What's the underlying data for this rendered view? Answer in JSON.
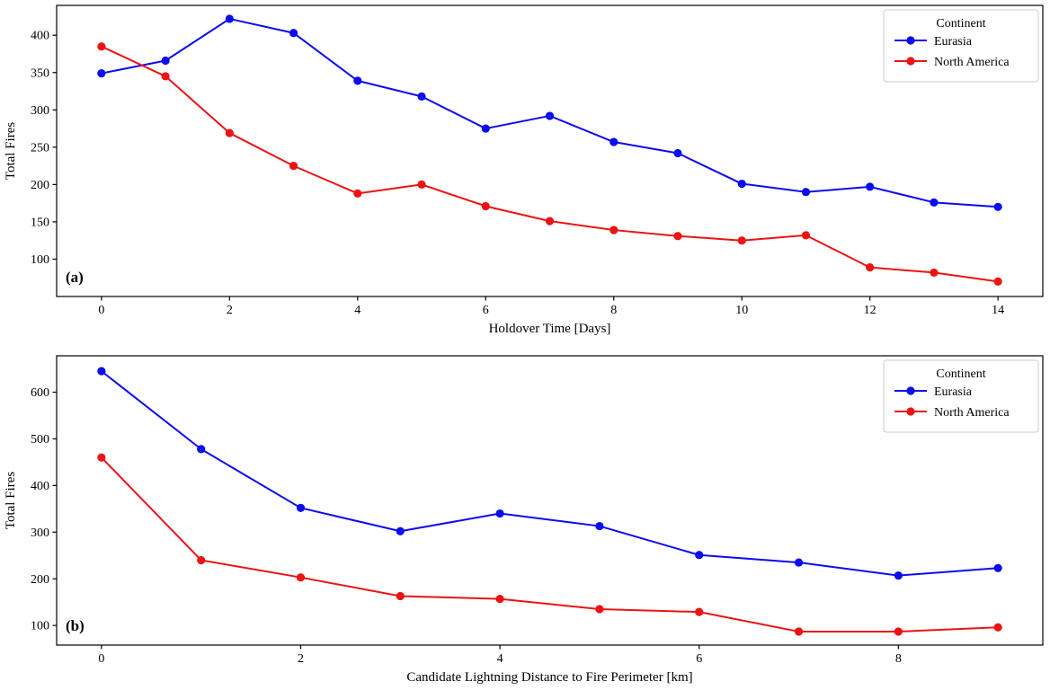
{
  "figure": {
    "background": "#ffffff",
    "axis_color": "#000000",
    "legend_border_color": "#cccccc"
  },
  "chart_data": [
    {
      "type": "line",
      "panel_label": "(a)",
      "title": "",
      "xlabel": "Holdover Time [Days]",
      "ylabel": "Total Fires",
      "x": [
        0,
        1,
        2,
        3,
        4,
        5,
        6,
        7,
        8,
        9,
        10,
        11,
        12,
        13,
        14
      ],
      "xticks": [
        0,
        2,
        4,
        6,
        8,
        10,
        12,
        14
      ],
      "yticks": [
        100,
        150,
        200,
        250,
        300,
        350,
        400
      ],
      "xlim": [
        -0.7,
        14.7
      ],
      "ylim": [
        50,
        440
      ],
      "grid": false,
      "legend": {
        "title": "Continent",
        "position": "upper right",
        "entries": [
          "Eurasia",
          "North America"
        ]
      },
      "series": [
        {
          "name": "Eurasia",
          "color": "#0b0bf0",
          "values": [
            349,
            366,
            422,
            403,
            339,
            318,
            275,
            292,
            257,
            242,
            201,
            190,
            197,
            176,
            170
          ]
        },
        {
          "name": "North America",
          "color": "#ec1313",
          "values": [
            385,
            345,
            269,
            225,
            188,
            200,
            171,
            151,
            139,
            131,
            125,
            132,
            89,
            82,
            70
          ]
        }
      ]
    },
    {
      "type": "line",
      "panel_label": "(b)",
      "title": "",
      "xlabel": "Candidate Lightning Distance to Fire Perimeter [km]",
      "ylabel": "Total Fires",
      "x": [
        0,
        1,
        2,
        3,
        4,
        5,
        6,
        7,
        8,
        9
      ],
      "xticks": [
        0,
        2,
        4,
        6,
        8
      ],
      "yticks": [
        100,
        200,
        300,
        400,
        500,
        600
      ],
      "xlim": [
        -0.45,
        9.45
      ],
      "ylim": [
        58,
        678
      ],
      "grid": false,
      "legend": {
        "title": "Continent",
        "position": "upper right",
        "entries": [
          "Eurasia",
          "North America"
        ]
      },
      "series": [
        {
          "name": "Eurasia",
          "color": "#0b0bf0",
          "values": [
            645,
            478,
            352,
            302,
            340,
            313,
            251,
            235,
            207,
            223
          ]
        },
        {
          "name": "North America",
          "color": "#ec1313",
          "values": [
            460,
            240,
            203,
            163,
            157,
            135,
            129,
            87,
            87,
            96
          ]
        }
      ]
    }
  ]
}
